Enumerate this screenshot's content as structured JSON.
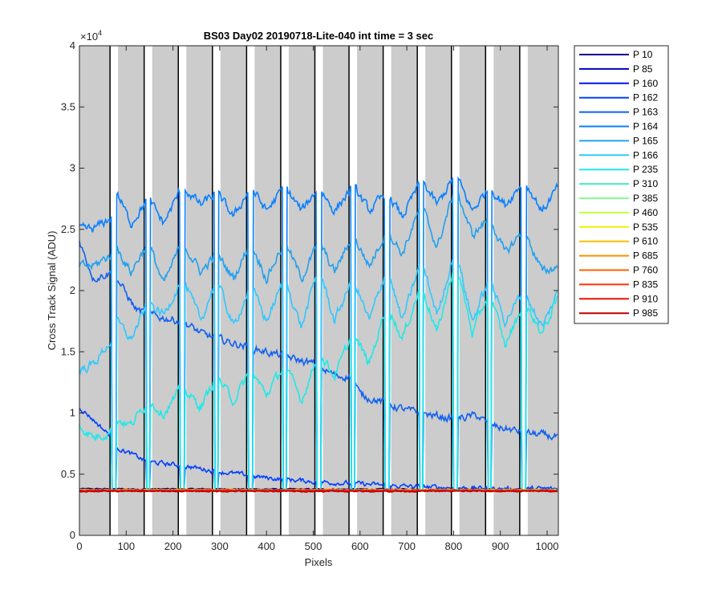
{
  "chart_data": {
    "type": "line",
    "title": "BS03 Day02 20190718-Lite-040 int time = 3 sec",
    "xlabel": "Pixels",
    "ylabel": "Cross Track Signal (ADU)",
    "xlim": [
      0,
      1024
    ],
    "ylim": [
      0,
      40000
    ],
    "x_ticks": [
      0,
      100,
      200,
      300,
      400,
      500,
      600,
      700,
      800,
      900,
      1000
    ],
    "y_ticks": [
      0,
      5000,
      10000,
      15000,
      20000,
      25000,
      30000,
      35000,
      40000
    ],
    "y_tick_labels": [
      "0",
      "0.5",
      "1",
      "1.5",
      "2",
      "2.5",
      "3",
      "3.5",
      "4"
    ],
    "y_exponent_label": "×10",
    "y_exponent_power": "4",
    "background_color": "#cccccc",
    "gap_columns_x": [
      74,
      147,
      220,
      293,
      366,
      439,
      512,
      585,
      658,
      731,
      804,
      877,
      950
    ],
    "gap_width_px": 10,
    "gap_floor": 3700,
    "legend": {
      "position": "outside-right"
    },
    "series": [
      {
        "name": "P 10",
        "color": "#00008f",
        "anchors": [
          [
            0,
            3800
          ],
          [
            1024,
            3750
          ]
        ],
        "noise": 40
      },
      {
        "name": "P 85",
        "color": "#0000bf",
        "anchors": [
          [
            0,
            3700
          ],
          [
            1024,
            3650
          ]
        ],
        "noise": 40
      },
      {
        "name": "P 160",
        "color": "#0010ef",
        "anchors": [
          [
            0,
            3750
          ],
          [
            74,
            3650
          ],
          [
            147,
            3700
          ],
          [
            300,
            3700
          ],
          [
            1024,
            3700
          ]
        ],
        "noise": 50
      },
      {
        "name": "P 162",
        "color": "#0040ff",
        "anchors": [
          [
            0,
            10500
          ],
          [
            70,
            8000
          ],
          [
            80,
            7200
          ],
          [
            147,
            6000
          ],
          [
            220,
            5700
          ],
          [
            300,
            5200
          ],
          [
            400,
            4700
          ],
          [
            500,
            4400
          ],
          [
            600,
            4200
          ],
          [
            700,
            4000
          ],
          [
            800,
            3900
          ],
          [
            900,
            3800
          ],
          [
            1024,
            3800
          ]
        ],
        "noise": 150
      },
      {
        "name": "P 163",
        "color": "#1060f0",
        "anchors": [
          [
            0,
            24000
          ],
          [
            30,
            21000
          ],
          [
            70,
            21500
          ],
          [
            80,
            21000
          ],
          [
            120,
            18500
          ],
          [
            147,
            18000
          ],
          [
            220,
            17500
          ],
          [
            260,
            16500
          ],
          [
            300,
            16000
          ],
          [
            350,
            15500
          ],
          [
            400,
            15000
          ],
          [
            450,
            14500
          ],
          [
            500,
            14000
          ],
          [
            550,
            13000
          ],
          [
            585,
            13000
          ],
          [
            600,
            11500
          ],
          [
            700,
            10200
          ],
          [
            800,
            9500
          ],
          [
            850,
            9800
          ],
          [
            877,
            9000
          ],
          [
            950,
            8400
          ],
          [
            1024,
            8000
          ]
        ],
        "noise": 250
      },
      {
        "name": "P 164",
        "color": "#0880ff",
        "anchors": [
          [
            0,
            25000
          ],
          [
            30,
            25000
          ],
          [
            70,
            26000
          ],
          [
            80,
            28000
          ],
          [
            110,
            25500
          ],
          [
            147,
            27500
          ],
          [
            180,
            25500
          ],
          [
            220,
            28500
          ],
          [
            260,
            27000
          ],
          [
            293,
            28000
          ],
          [
            330,
            26000
          ],
          [
            366,
            28500
          ],
          [
            400,
            26500
          ],
          [
            439,
            28500
          ],
          [
            475,
            26500
          ],
          [
            512,
            28500
          ],
          [
            545,
            26500
          ],
          [
            585,
            28500
          ],
          [
            620,
            26500
          ],
          [
            658,
            28000
          ],
          [
            690,
            26000
          ],
          [
            731,
            29000
          ],
          [
            765,
            27000
          ],
          [
            804,
            29500
          ],
          [
            840,
            26500
          ],
          [
            877,
            28500
          ],
          [
            910,
            27000
          ],
          [
            950,
            29000
          ],
          [
            990,
            26500
          ],
          [
            1024,
            28500
          ]
        ],
        "noise": 300
      },
      {
        "name": "P 165",
        "color": "#20a0f0",
        "anchors": [
          [
            0,
            22000
          ],
          [
            30,
            22000
          ],
          [
            70,
            23000
          ],
          [
            80,
            23500
          ],
          [
            110,
            21500
          ],
          [
            147,
            24000
          ],
          [
            180,
            20500
          ],
          [
            220,
            24000
          ],
          [
            260,
            21500
          ],
          [
            293,
            23000
          ],
          [
            330,
            21000
          ],
          [
            366,
            24000
          ],
          [
            400,
            21000
          ],
          [
            439,
            24000
          ],
          [
            475,
            21000
          ],
          [
            512,
            24000
          ],
          [
            545,
            21500
          ],
          [
            585,
            24500
          ],
          [
            620,
            22000
          ],
          [
            658,
            25000
          ],
          [
            690,
            23000
          ],
          [
            731,
            27000
          ],
          [
            765,
            23500
          ],
          [
            804,
            28500
          ],
          [
            840,
            24500
          ],
          [
            877,
            26000
          ],
          [
            910,
            23000
          ],
          [
            950,
            25000
          ],
          [
            990,
            21500
          ],
          [
            1024,
            22000
          ]
        ],
        "noise": 300
      },
      {
        "name": "P 166",
        "color": "#30c8ff",
        "anchors": [
          [
            0,
            13500
          ],
          [
            30,
            14000
          ],
          [
            70,
            16000
          ],
          [
            80,
            17500
          ],
          [
            110,
            16000
          ],
          [
            147,
            19000
          ],
          [
            180,
            18000
          ],
          [
            220,
            21000
          ],
          [
            260,
            17500
          ],
          [
            293,
            21000
          ],
          [
            330,
            17000
          ],
          [
            366,
            20500
          ],
          [
            400,
            17500
          ],
          [
            439,
            21000
          ],
          [
            475,
            17000
          ],
          [
            512,
            22000
          ],
          [
            545,
            17500
          ],
          [
            585,
            21000
          ],
          [
            620,
            17500
          ],
          [
            658,
            22000
          ],
          [
            690,
            17500
          ],
          [
            731,
            22500
          ],
          [
            765,
            18000
          ],
          [
            804,
            23500
          ],
          [
            840,
            17500
          ],
          [
            877,
            21000
          ],
          [
            910,
            17500
          ],
          [
            950,
            20000
          ],
          [
            990,
            17000
          ],
          [
            1024,
            20000
          ]
        ],
        "noise": 300
      },
      {
        "name": "P 235",
        "color": "#20e8e8",
        "anchors": [
          [
            0,
            9000
          ],
          [
            30,
            8000
          ],
          [
            70,
            8500
          ],
          [
            80,
            9500
          ],
          [
            110,
            9000
          ],
          [
            147,
            11000
          ],
          [
            180,
            10000
          ],
          [
            220,
            12000
          ],
          [
            260,
            10500
          ],
          [
            293,
            13000
          ],
          [
            330,
            11000
          ],
          [
            366,
            13500
          ],
          [
            400,
            11500
          ],
          [
            439,
            14000
          ],
          [
            475,
            11000
          ],
          [
            512,
            15000
          ],
          [
            545,
            13000
          ],
          [
            585,
            16500
          ],
          [
            620,
            14000
          ],
          [
            658,
            19000
          ],
          [
            690,
            16000
          ],
          [
            731,
            20500
          ],
          [
            765,
            16500
          ],
          [
            804,
            22500
          ],
          [
            840,
            16500
          ],
          [
            877,
            20000
          ],
          [
            910,
            15500
          ],
          [
            950,
            19000
          ],
          [
            990,
            16500
          ],
          [
            1024,
            19500
          ]
        ],
        "noise": 300
      },
      {
        "name": "P 310",
        "color": "#40f0c0",
        "anchors": [
          [
            0,
            3700
          ],
          [
            1024,
            3700
          ]
        ],
        "noise": 40
      },
      {
        "name": "P 385",
        "color": "#80ff90",
        "anchors": [
          [
            0,
            3700
          ],
          [
            1024,
            3700
          ]
        ],
        "noise": 40
      },
      {
        "name": "P 460",
        "color": "#c0ff40",
        "anchors": [
          [
            0,
            3700
          ],
          [
            1024,
            3700
          ]
        ],
        "noise": 40
      },
      {
        "name": "P 535",
        "color": "#f0f000",
        "anchors": [
          [
            0,
            3700
          ],
          [
            1024,
            3700
          ]
        ],
        "noise": 40
      },
      {
        "name": "P 610",
        "color": "#ffc000",
        "anchors": [
          [
            0,
            3700
          ],
          [
            1024,
            3700
          ]
        ],
        "noise": 40
      },
      {
        "name": "P 685",
        "color": "#ff9000",
        "anchors": [
          [
            0,
            3700
          ],
          [
            1024,
            3700
          ]
        ],
        "noise": 40
      },
      {
        "name": "P 760",
        "color": "#ff6000",
        "anchors": [
          [
            0,
            3700
          ],
          [
            1024,
            3700
          ]
        ],
        "noise": 40
      },
      {
        "name": "P 835",
        "color": "#ff3000",
        "anchors": [
          [
            0,
            3650
          ],
          [
            1024,
            3650
          ]
        ],
        "noise": 40
      },
      {
        "name": "P 910",
        "color": "#e81000",
        "anchors": [
          [
            0,
            3650
          ],
          [
            1024,
            3650
          ]
        ],
        "noise": 40
      },
      {
        "name": "P 985",
        "color": "#bf0000",
        "anchors": [
          [
            0,
            3600
          ],
          [
            1024,
            3600
          ]
        ],
        "noise": 40
      }
    ]
  }
}
